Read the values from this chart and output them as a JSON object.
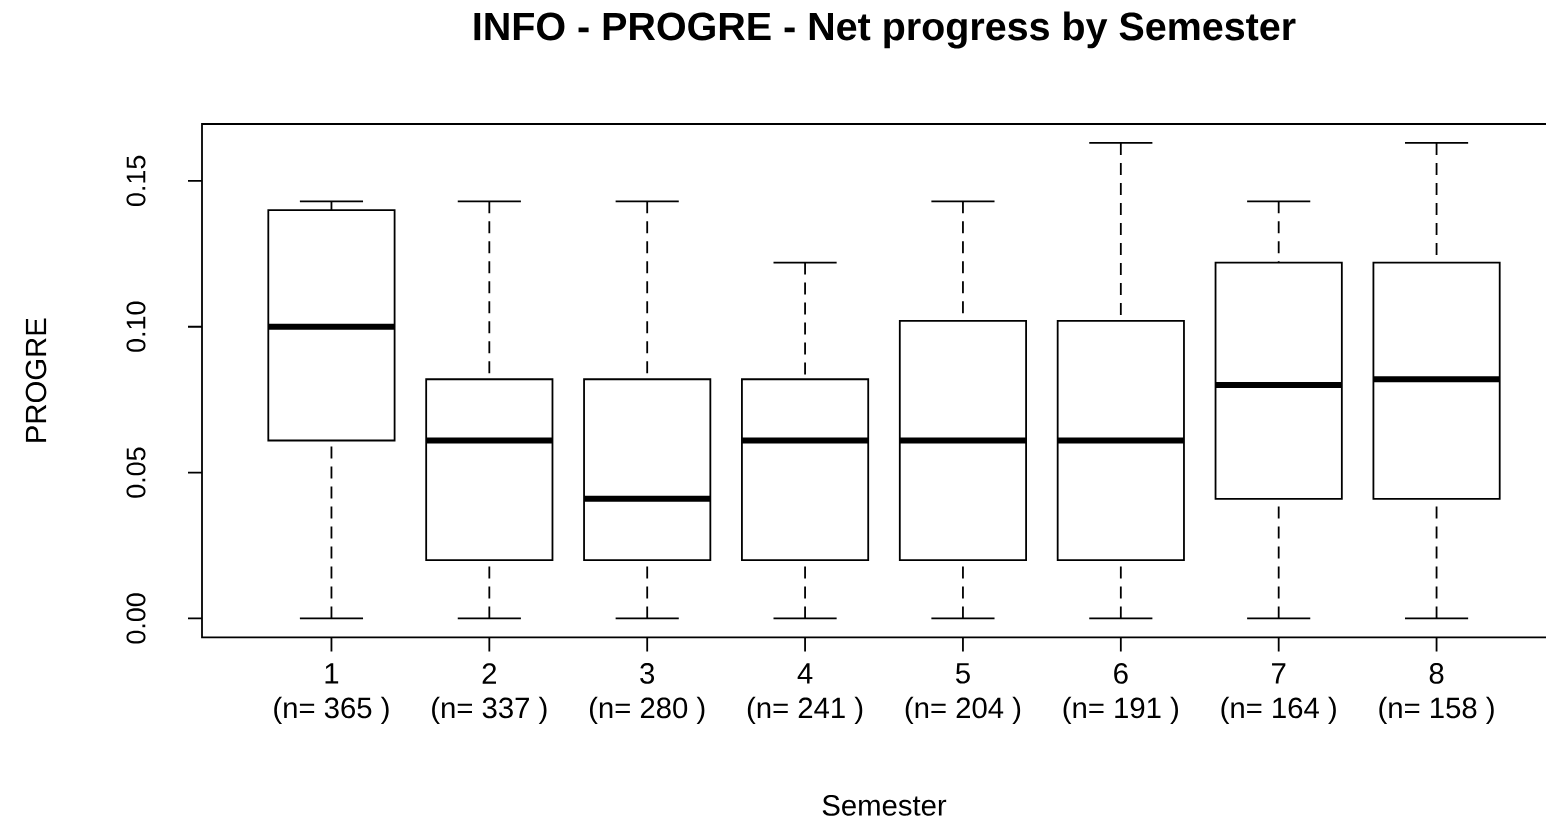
{
  "chart_data": {
    "type": "box",
    "title": "INFO  - PROGRE - Net progress by Semester",
    "xlabel": "Semester",
    "ylabel": "PROGRE",
    "categories": [
      "1",
      "2",
      "3",
      "4",
      "5",
      "6",
      "7",
      "8"
    ],
    "boxes": [
      {
        "low": 0,
        "q1": 0.061,
        "median": 0.1,
        "q3": 0.14,
        "high": 0.143
      },
      {
        "low": 0,
        "q1": 0.02,
        "median": 0.061,
        "q3": 0.082,
        "high": 0.143
      },
      {
        "low": 0,
        "q1": 0.02,
        "median": 0.041,
        "q3": 0.082,
        "high": 0.143
      },
      {
        "low": 0,
        "q1": 0.02,
        "median": 0.061,
        "q3": 0.082,
        "high": 0.122
      },
      {
        "low": 0,
        "q1": 0.02,
        "median": 0.061,
        "q3": 0.102,
        "high": 0.143
      },
      {
        "low": 0,
        "q1": 0.02,
        "median": 0.061,
        "q3": 0.102,
        "high": 0.163
      },
      {
        "low": 0,
        "q1": 0.041,
        "median": 0.08,
        "q3": 0.122,
        "high": 0.143
      },
      {
        "low": 0,
        "q1": 0.041,
        "median": 0.082,
        "q3": 0.122,
        "high": 0.163
      }
    ],
    "ylim": [
      -0.0065,
      0.1695
    ],
    "yticks": [
      {
        "value": 0,
        "label": "0.00"
      },
      0.05,
      {
        "value": 0.1,
        "label": "0.10"
      },
      0.15
    ],
    "annotations": [
      "(n= 365 )",
      "(n= 337 )",
      "(n= 280 )",
      "(n= 241 )",
      "(n= 204 )",
      "(n= 191 )",
      "(n= 164 )",
      "(n= 158 )"
    ]
  }
}
